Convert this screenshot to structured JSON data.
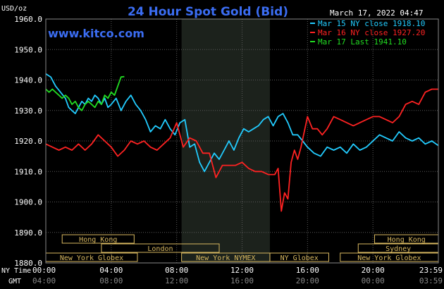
{
  "chart_data": {
    "type": "line",
    "title": "24 Hour Spot Gold (Bid)",
    "date_label": "March 17, 2022 04:47",
    "website": "www.kitco.com",
    "ylabel": "USD/oz",
    "ylim": [
      1880,
      1960
    ],
    "yticks": [
      "1960.0",
      "1950.0",
      "1940.0",
      "1930.0",
      "1920.0",
      "1910.0",
      "1900.0",
      "1890.0",
      "1880.0"
    ],
    "ytick_values": [
      1960,
      1950,
      1940,
      1930,
      1920,
      1910,
      1900,
      1890,
      1880
    ],
    "x_unit": "hours (NY time)",
    "xlim": [
      0,
      24
    ],
    "xticks_ny": [
      "00:00",
      "04:00",
      "08:00",
      "12:00",
      "16:00",
      "20:00",
      "23:59"
    ],
    "xticks_gmt": [
      "04:00",
      "08:00",
      "12:00",
      "16:00",
      "20:00",
      "00:00",
      "03:59"
    ],
    "xtick_hours": [
      0,
      4,
      8,
      12,
      16,
      20,
      24
    ],
    "axis_row_labels": {
      "ny": "NY Time",
      "gmt": "GMT"
    },
    "shaded_session": {
      "label": "New York NYMEX",
      "start": 8.3,
      "end": 13.7
    },
    "grid": true,
    "legend_position": "top-right",
    "sessions": [
      {
        "label": "Hong Kong",
        "start": 1.0,
        "end": 5.4,
        "row": 0
      },
      {
        "label": "London",
        "start": 3.4,
        "end": 10.6,
        "row": 1
      },
      {
        "label": "New York Globex",
        "start": 0.0,
        "end": 5.6,
        "row": 2
      },
      {
        "label": "New York NYMEX",
        "start": 8.3,
        "end": 13.7,
        "row": 2
      },
      {
        "label": "NY Globex",
        "start": 13.7,
        "end": 17.3,
        "row": 2
      },
      {
        "label": "Hong Kong",
        "start": 20.1,
        "end": 24.0,
        "row": 0
      },
      {
        "label": "Sydney",
        "start": 19.1,
        "end": 24.0,
        "row": 1
      },
      {
        "label": "New York Globex",
        "start": 18.0,
        "end": 24.0,
        "row": 2
      }
    ],
    "series": [
      {
        "name": "Mar 15 NY close 1918.10",
        "color": "#22ccff",
        "x": [
          0,
          0.3,
          0.6,
          0.9,
          1.2,
          1.4,
          1.6,
          1.8,
          2.0,
          2.2,
          2.4,
          2.6,
          2.8,
          3.0,
          3.2,
          3.4,
          3.6,
          3.8,
          4.0,
          4.3,
          4.6,
          4.9,
          5.2,
          5.5,
          5.8,
          6.1,
          6.4,
          6.7,
          7.0,
          7.3,
          7.6,
          7.9,
          8.2,
          8.5,
          8.8,
          9.1,
          9.4,
          9.7,
          10.0,
          10.3,
          10.6,
          10.9,
          11.2,
          11.5,
          11.8,
          12.1,
          12.4,
          12.7,
          13.0,
          13.3,
          13.6,
          13.9,
          14.2,
          14.5,
          14.8,
          15.1,
          15.4,
          15.7,
          16.0,
          16.4,
          16.8,
          17.2,
          17.6,
          18.0,
          18.4,
          18.8,
          19.2,
          19.6,
          20.0,
          20.4,
          20.8,
          21.2,
          21.6,
          22.0,
          22.4,
          22.8,
          23.2,
          23.6,
          24.0
        ],
        "values": [
          1942,
          1941,
          1938,
          1936,
          1934,
          1931,
          1930,
          1929,
          1931,
          1933,
          1932,
          1934,
          1933,
          1935,
          1934,
          1932,
          1934,
          1931,
          1932,
          1934,
          1930,
          1933,
          1935,
          1932,
          1930,
          1927,
          1923,
          1925,
          1924,
          1927,
          1924,
          1922,
          1926,
          1927,
          1918,
          1919,
          1913,
          1910,
          1913,
          1916,
          1914,
          1917,
          1920,
          1917,
          1921,
          1924,
          1923,
          1924,
          1925,
          1927,
          1928,
          1925,
          1928,
          1929,
          1926,
          1922,
          1922,
          1920,
          1918,
          1916,
          1915,
          1918,
          1917,
          1918,
          1916,
          1919,
          1917,
          1918,
          1920,
          1922,
          1921,
          1920,
          1923,
          1921,
          1920,
          1921,
          1919,
          1920,
          1918.5
        ]
      },
      {
        "name": "Mar 16 NY close 1927.20",
        "color": "#ff2222",
        "x": [
          0,
          0.4,
          0.8,
          1.2,
          1.6,
          2.0,
          2.4,
          2.8,
          3.2,
          3.6,
          4.0,
          4.4,
          4.8,
          5.2,
          5.6,
          6.0,
          6.4,
          6.8,
          7.2,
          7.6,
          8.0,
          8.4,
          8.8,
          9.2,
          9.6,
          10.0,
          10.4,
          10.8,
          11.2,
          11.6,
          12.0,
          12.4,
          12.8,
          13.2,
          13.6,
          14.0,
          14.2,
          14.4,
          14.6,
          14.8,
          15.0,
          15.2,
          15.4,
          15.6,
          15.8,
          16.0,
          16.3,
          16.6,
          16.9,
          17.2,
          17.6,
          18.0,
          18.4,
          18.8,
          19.2,
          19.6,
          20.0,
          20.4,
          20.8,
          21.2,
          21.6,
          22.0,
          22.4,
          22.8,
          23.2,
          23.6,
          24.0
        ],
        "values": [
          1919,
          1918,
          1917,
          1918,
          1917,
          1919,
          1917,
          1919,
          1922,
          1920,
          1918,
          1915,
          1917,
          1920,
          1919,
          1920,
          1918,
          1917,
          1919,
          1921,
          1926,
          1918,
          1921,
          1920,
          1916,
          1916,
          1908,
          1912,
          1912,
          1912,
          1913,
          1911,
          1910,
          1910,
          1909,
          1909,
          1911,
          1897,
          1903,
          1901,
          1913,
          1917,
          1914,
          1918,
          1923,
          1928,
          1924,
          1924,
          1922,
          1924,
          1928,
          1927,
          1926,
          1925,
          1926,
          1927,
          1928,
          1928,
          1927,
          1926,
          1928,
          1932,
          1933,
          1932,
          1936,
          1937,
          1937
        ]
      },
      {
        "name": "Mar 17 Last 1941.10",
        "color": "#22dd22",
        "x": [
          0,
          0.2,
          0.4,
          0.6,
          0.8,
          1.0,
          1.2,
          1.4,
          1.6,
          1.8,
          2.0,
          2.2,
          2.4,
          2.6,
          2.8,
          3.0,
          3.2,
          3.4,
          3.6,
          3.8,
          4.0,
          4.2,
          4.4,
          4.6,
          4.8
        ],
        "values": [
          1937,
          1936,
          1937,
          1936,
          1935,
          1934,
          1935,
          1934,
          1932,
          1933,
          1931,
          1930,
          1932,
          1933,
          1932,
          1931,
          1933,
          1932,
          1935,
          1934,
          1936,
          1935,
          1938,
          1941,
          1941.1
        ]
      }
    ]
  }
}
